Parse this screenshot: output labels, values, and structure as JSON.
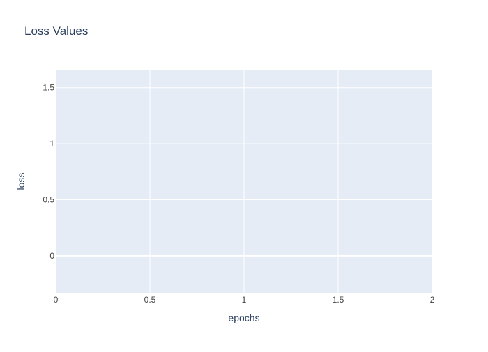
{
  "chart_data": {
    "type": "line",
    "title": "Loss Values",
    "xlabel": "epochs",
    "ylabel": "loss",
    "xlim": [
      0,
      2
    ],
    "ylim": [
      -0.33,
      1.66
    ],
    "x_ticks": [
      0,
      0.5,
      1,
      1.5,
      2
    ],
    "y_ticks": [
      0,
      0.5,
      1,
      1.5
    ],
    "x_tick_labels": [
      "0",
      "0.5",
      "1",
      "1.5",
      "2"
    ],
    "y_tick_labels": [
      "0",
      "0.5",
      "1",
      "1.5"
    ],
    "grid": true,
    "series": [],
    "colors": {
      "plot_bg": "#e5ecf6",
      "grid": "#ffffff",
      "text": "#2a3f5f",
      "tick_text": "#444444",
      "page_bg": "#ffffff"
    }
  }
}
